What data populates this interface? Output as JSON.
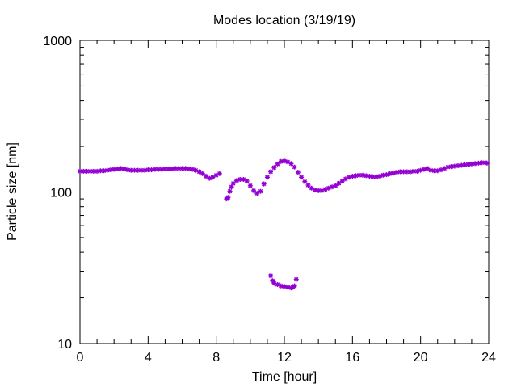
{
  "chart_data": {
    "type": "scatter",
    "title": "Modes location (3/19/19)",
    "xlabel": "Time [hour]",
    "ylabel": "Particle size [nm]",
    "xlim": [
      0,
      24
    ],
    "ylim": [
      10,
      1000
    ],
    "yscale": "log",
    "grid": false,
    "legend": "none",
    "marker_color": "#9400d3",
    "x_ticks": [
      0,
      4,
      8,
      12,
      16,
      20,
      24
    ],
    "x_tick_labels": [
      "0",
      "4",
      "8",
      "12",
      "16",
      "20",
      "24"
    ],
    "y_ticks": [
      10,
      100,
      1000
    ],
    "y_tick_labels": [
      "10",
      "100",
      "1000"
    ],
    "series": [
      {
        "points": [
          [
            0.0,
            137
          ],
          [
            0.2,
            137
          ],
          [
            0.4,
            137
          ],
          [
            0.6,
            137
          ],
          [
            0.8,
            137
          ],
          [
            1.0,
            137
          ],
          [
            1.2,
            138
          ],
          [
            1.4,
            138
          ],
          [
            1.6,
            139
          ],
          [
            1.8,
            140
          ],
          [
            2.0,
            141
          ],
          [
            2.2,
            142
          ],
          [
            2.4,
            143
          ],
          [
            2.6,
            142
          ],
          [
            2.8,
            140
          ],
          [
            3.0,
            139
          ],
          [
            3.2,
            139
          ],
          [
            3.4,
            139
          ],
          [
            3.6,
            139
          ],
          [
            3.8,
            139
          ],
          [
            4.0,
            140
          ],
          [
            4.2,
            140
          ],
          [
            4.4,
            141
          ],
          [
            4.6,
            141
          ],
          [
            4.8,
            141
          ],
          [
            5.0,
            142
          ],
          [
            5.2,
            142
          ],
          [
            5.4,
            142
          ],
          [
            5.6,
            143
          ],
          [
            5.8,
            143
          ],
          [
            6.0,
            143
          ],
          [
            6.2,
            143
          ],
          [
            6.4,
            142
          ],
          [
            6.6,
            141
          ],
          [
            6.8,
            139
          ],
          [
            7.0,
            136
          ],
          [
            7.2,
            132
          ],
          [
            7.4,
            127
          ],
          [
            7.6,
            123
          ],
          [
            7.8,
            125
          ],
          [
            8.0,
            129
          ],
          [
            8.2,
            132
          ],
          [
            8.6,
            90
          ],
          [
            8.7,
            92
          ],
          [
            8.8,
            101
          ],
          [
            8.9,
            108
          ],
          [
            9.0,
            114
          ],
          [
            9.2,
            119
          ],
          [
            9.4,
            121
          ],
          [
            9.6,
            121
          ],
          [
            9.8,
            118
          ],
          [
            10.0,
            110
          ],
          [
            10.2,
            102
          ],
          [
            10.4,
            98
          ],
          [
            10.6,
            101
          ],
          [
            10.8,
            113
          ],
          [
            11.0,
            125
          ],
          [
            11.2,
            136
          ],
          [
            11.4,
            145
          ],
          [
            11.6,
            153
          ],
          [
            11.8,
            159
          ],
          [
            12.0,
            160
          ],
          [
            12.2,
            158
          ],
          [
            12.4,
            154
          ],
          [
            12.6,
            146
          ],
          [
            12.8,
            135
          ],
          [
            13.0,
            125
          ],
          [
            13.2,
            117
          ],
          [
            13.4,
            111
          ],
          [
            13.6,
            106
          ],
          [
            13.8,
            103
          ],
          [
            14.0,
            102
          ],
          [
            14.2,
            102
          ],
          [
            14.4,
            104
          ],
          [
            14.6,
            106
          ],
          [
            14.8,
            108
          ],
          [
            15.0,
            110
          ],
          [
            15.2,
            114
          ],
          [
            15.4,
            118
          ],
          [
            15.6,
            122
          ],
          [
            15.8,
            125
          ],
          [
            16.0,
            127
          ],
          [
            16.2,
            128
          ],
          [
            16.4,
            129
          ],
          [
            16.6,
            129
          ],
          [
            16.8,
            128
          ],
          [
            17.0,
            127
          ],
          [
            17.2,
            126
          ],
          [
            17.4,
            126
          ],
          [
            17.6,
            127
          ],
          [
            17.8,
            129
          ],
          [
            18.0,
            130
          ],
          [
            18.2,
            132
          ],
          [
            18.4,
            133
          ],
          [
            18.6,
            135
          ],
          [
            18.8,
            136
          ],
          [
            19.0,
            136
          ],
          [
            19.2,
            136
          ],
          [
            19.4,
            136
          ],
          [
            19.6,
            137
          ],
          [
            19.8,
            137
          ],
          [
            20.0,
            139
          ],
          [
            20.2,
            141
          ],
          [
            20.4,
            143
          ],
          [
            20.6,
            139
          ],
          [
            20.8,
            138
          ],
          [
            21.0,
            138
          ],
          [
            21.2,
            140
          ],
          [
            21.4,
            143
          ],
          [
            21.6,
            146
          ],
          [
            21.8,
            147
          ],
          [
            22.0,
            148
          ],
          [
            22.2,
            149
          ],
          [
            22.4,
            150
          ],
          [
            22.6,
            151
          ],
          [
            22.8,
            152
          ],
          [
            23.0,
            153
          ],
          [
            23.2,
            154
          ],
          [
            23.4,
            155
          ],
          [
            23.6,
            156
          ],
          [
            23.8,
            156
          ],
          [
            23.9,
            155
          ],
          [
            11.2,
            28
          ],
          [
            11.3,
            26
          ],
          [
            11.4,
            25
          ],
          [
            11.6,
            24.5
          ],
          [
            11.8,
            24
          ],
          [
            12.0,
            23.8
          ],
          [
            12.2,
            23.5
          ],
          [
            12.4,
            23.3
          ],
          [
            12.5,
            23.5
          ],
          [
            12.6,
            24
          ],
          [
            12.7,
            26.5
          ]
        ]
      }
    ]
  }
}
